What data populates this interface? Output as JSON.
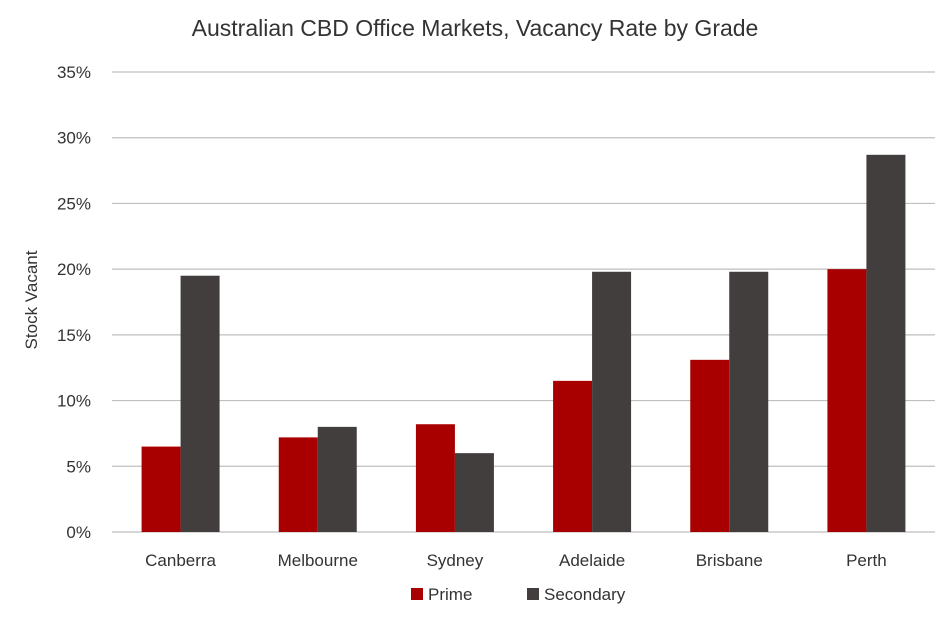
{
  "chart_data": {
    "type": "bar",
    "title": "Australian CBD Office Markets, Vacancy Rate by Grade",
    "xlabel": "",
    "ylabel": "Stock Vacant",
    "categories": [
      "Canberra",
      "Melbourne",
      "Sydney",
      "Adelaide",
      "Brisbane",
      "Perth"
    ],
    "series": [
      {
        "name": "Prime",
        "values": [
          6.5,
          7.2,
          8.2,
          11.5,
          13.1,
          20.0
        ]
      },
      {
        "name": "Secondary",
        "values": [
          19.5,
          8.0,
          6.0,
          19.8,
          19.8,
          28.7
        ]
      }
    ],
    "ylim": [
      0,
      35
    ],
    "yticks": [
      0,
      5,
      10,
      15,
      20,
      25,
      30,
      35
    ],
    "ytick_labels": [
      "0%",
      "5%",
      "10%",
      "15%",
      "20%",
      "25%",
      "30%",
      "35%"
    ],
    "grid": true,
    "legend_position": "bottom",
    "colors": {
      "Prime": "#a80000",
      "Secondary": "#413e3d"
    }
  }
}
